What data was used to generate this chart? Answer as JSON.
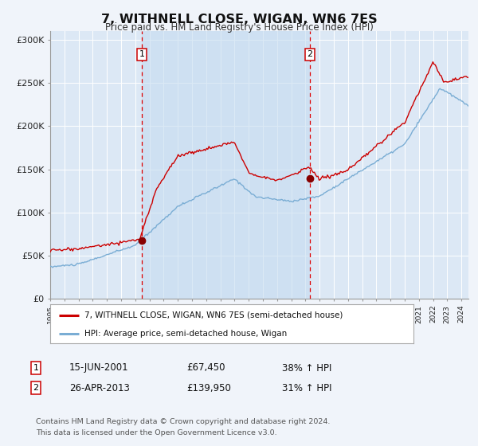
{
  "title": "7, WITHNELL CLOSE, WIGAN, WN6 7ES",
  "subtitle": "Price paid vs. HM Land Registry's House Price Index (HPI)",
  "background_color": "#f0f4fa",
  "plot_bg_color": "#dce8f5",
  "ylim": [
    0,
    310000
  ],
  "yticks": [
    0,
    50000,
    100000,
    150000,
    200000,
    250000,
    300000
  ],
  "ytick_labels": [
    "£0",
    "£50K",
    "£100K",
    "£150K",
    "£200K",
    "£250K",
    "£300K"
  ],
  "line1_color": "#cc0000",
  "line2_color": "#7aadd4",
  "sale1_date_x": 2001.46,
  "sale1_price": 67450,
  "sale2_date_x": 2013.32,
  "sale2_price": 139950,
  "vline1_x": 2001.46,
  "vline2_x": 2013.32,
  "shade_x_start": 2001.46,
  "shade_x_end": 2013.32,
  "legend_line1": "7, WITHNELL CLOSE, WIGAN, WN6 7ES (semi-detached house)",
  "legend_line2": "HPI: Average price, semi-detached house, Wigan",
  "annotation1_label": "1",
  "annotation1_date": "15-JUN-2001",
  "annotation1_price": "£67,450",
  "annotation1_hpi": "38% ↑ HPI",
  "annotation2_label": "2",
  "annotation2_date": "26-APR-2013",
  "annotation2_price": "£139,950",
  "annotation2_hpi": "31% ↑ HPI",
  "footer_line1": "Contains HM Land Registry data © Crown copyright and database right 2024.",
  "footer_line2": "This data is licensed under the Open Government Licence v3.0.",
  "xmin": 1995.0,
  "xmax": 2024.5
}
